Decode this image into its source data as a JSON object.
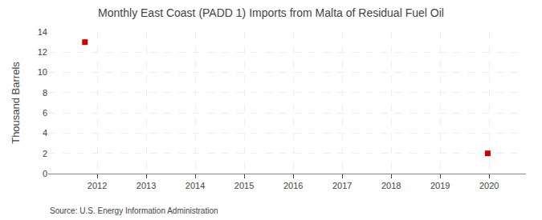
{
  "chart_data": {
    "type": "scatter",
    "title": "Monthly East Coast (PADD 1) Imports from Malta of Residual Fuel Oil",
    "y_label": "Thousand Barrels",
    "annotations": [
      "Source: U.S. Energy Information Administration"
    ],
    "x": [
      2011.75,
      2019.97
    ],
    "values": [
      13,
      2
    ],
    "color": "#cc0000",
    "marker": "square",
    "xlim": [
      2011.0,
      2020.75
    ],
    "ylim": [
      0,
      14
    ],
    "xticks": [
      2012,
      2013,
      2014,
      2015,
      2016,
      2017,
      2018,
      2019,
      2020
    ],
    "yticks": [
      0,
      2,
      4,
      6,
      8,
      10,
      12,
      14
    ],
    "grid": true
  }
}
